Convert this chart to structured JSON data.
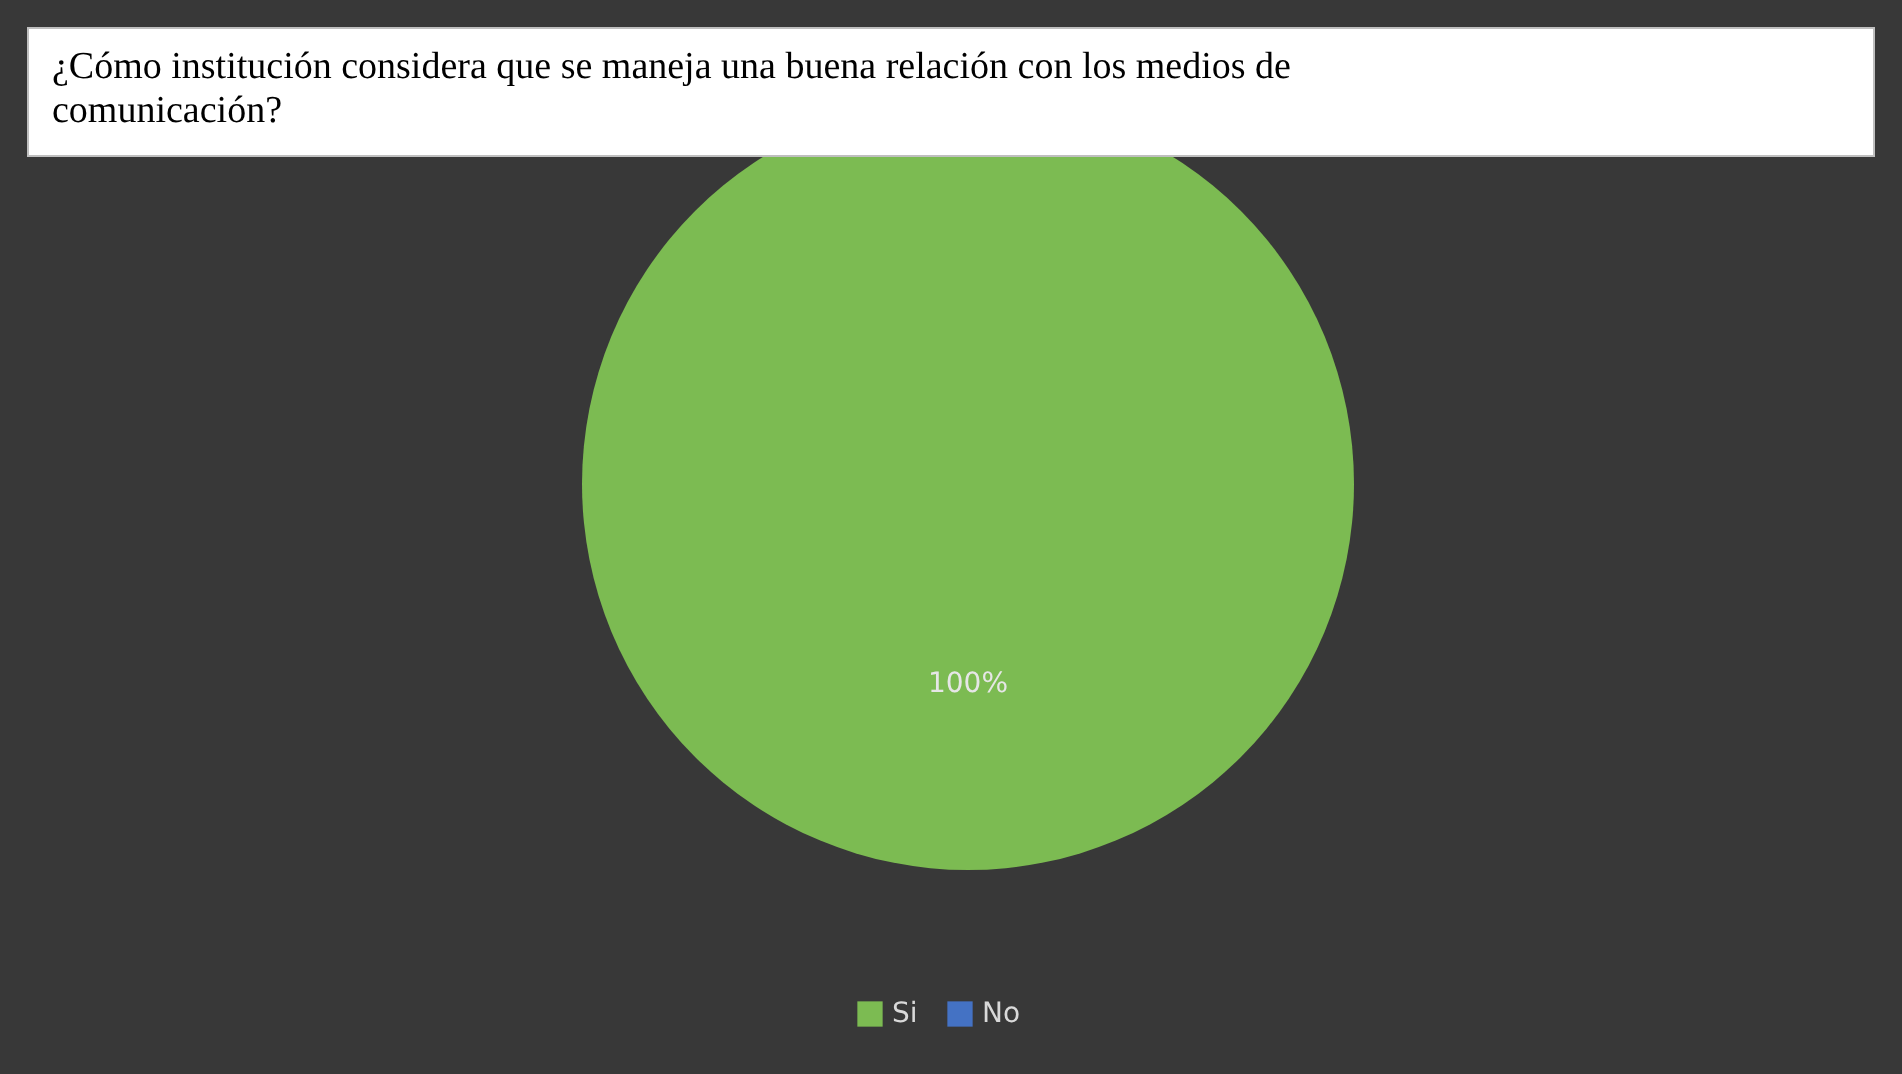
{
  "chart_data": {
    "type": "pie",
    "title": "¿Cómo institución considera que se maneja una buena relación con los medios de comunicación?",
    "categories": [
      "Si",
      "No"
    ],
    "values": [
      100,
      0
    ],
    "colors": [
      "#7cbb52",
      "#4472c4"
    ],
    "value_labels": [
      "100%",
      null
    ],
    "legend": "bottom"
  }
}
